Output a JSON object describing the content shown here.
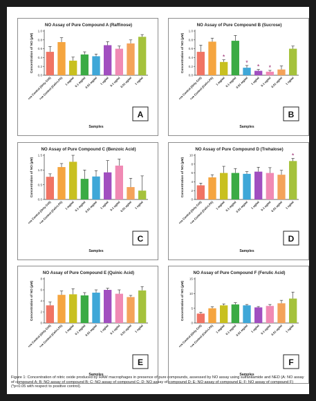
{
  "x_categories": [
    "+ve Control (Only Cell)",
    "+ve Control (Cell+LPS)",
    "1 mg/ml",
    "0.1 mg/ml",
    "0.01 mg/ml",
    "1 ug/ml",
    "0.1 ug/ml",
    "0.01 ug/ml",
    "1 ng/ml"
  ],
  "bar_colors": [
    "#f07464",
    "#f5a53f",
    "#c8c020",
    "#3bab44",
    "#3fa7d8",
    "#a14fc0",
    "#f08ab4",
    "#f4a35a",
    "#a5c23c"
  ],
  "chart_data": [
    {
      "type": "bar",
      "title": "NO Assay of Pure Compound A (Raffinose)",
      "xlabel": "Samples",
      "ylabel": "Concentration of NO (µM)",
      "ylim": [
        0,
        1.0
      ],
      "yticks": [
        "0.0",
        "0.2",
        "0.4",
        "0.6",
        "0.8",
        "1.0"
      ],
      "categories": [
        "+ve Control (Only Cell)",
        "+ve Control (Cell+LPS)",
        "1 mg/ml",
        "0.1 mg/ml",
        "0.01 mg/ml",
        "1 ug/ml",
        "0.1 ug/ml",
        "0.01 ug/ml",
        "1 ng/ml"
      ],
      "values": [
        0.53,
        0.75,
        0.33,
        0.47,
        0.43,
        0.68,
        0.6,
        0.72,
        0.87
      ],
      "errors": [
        0.12,
        0.1,
        0.08,
        0.06,
        0.05,
        0.08,
        0.06,
        0.08,
        0.05
      ],
      "stars": [
        false,
        false,
        false,
        false,
        false,
        false,
        false,
        false,
        false
      ],
      "label": "A"
    },
    {
      "type": "bar",
      "title": "NO Assay of Pure Compound B (Sucrose)",
      "xlabel": "Samples",
      "ylabel": "Concentration of NO (µM)",
      "ylim": [
        0,
        1.0
      ],
      "yticks": [
        "0.0",
        "0.2",
        "0.4",
        "0.6",
        "0.8",
        "1.0"
      ],
      "categories": [
        "+ve Control (Only Cell)",
        "+ve Control (Cell+LPS)",
        "1 mg/ml",
        "0.1 mg/ml",
        "0.01 mg/ml",
        "1 ug/ml",
        "0.1 ug/ml",
        "0.01 ug/ml",
        "1 ng/ml"
      ],
      "values": [
        0.53,
        0.76,
        0.3,
        0.78,
        0.17,
        0.1,
        0.08,
        0.13,
        0.6
      ],
      "errors": [
        0.15,
        0.08,
        0.05,
        0.12,
        0.05,
        0.03,
        0.03,
        0.08,
        0.06
      ],
      "stars": [
        false,
        false,
        true,
        false,
        true,
        true,
        true,
        false,
        false
      ],
      "label": "B"
    },
    {
      "type": "bar",
      "title": "NO Assay of Pure Compound C (Benzoic Acid)",
      "xlabel": "Samples",
      "ylabel": "Concentration of NO (µM)",
      "ylim": [
        0,
        1.5
      ],
      "yticks": [
        "0.0",
        "0.5",
        "1.0",
        "1.5"
      ],
      "categories": [
        "+ve Control (Only Cell)",
        "+ve Control (Cell+LPS)",
        "1 mg/ml",
        "0.1 mg/ml",
        "0.01 mg/ml",
        "1 ug/ml",
        "0.1 ug/ml",
        "0.01 ug/ml",
        "1 ng/ml"
      ],
      "values": [
        0.77,
        1.1,
        1.28,
        0.7,
        0.78,
        0.92,
        1.15,
        0.42,
        0.3
      ],
      "errors": [
        0.1,
        0.12,
        0.45,
        0.3,
        0.2,
        0.4,
        0.22,
        0.3,
        0.5
      ],
      "stars": [
        false,
        false,
        false,
        false,
        false,
        false,
        false,
        false,
        false
      ],
      "label": "C"
    },
    {
      "type": "bar",
      "title": "NO Assay of Pure Compound D (Trehalose)",
      "xlabel": "Samples",
      "ylabel": "Concentration of NO (µM)",
      "ylim": [
        0,
        10
      ],
      "yticks": [
        "0",
        "2",
        "4",
        "6",
        "8",
        "10"
      ],
      "categories": [
        "+ve Control (Only Cell)",
        "+ve Control (Cell+LPS)",
        "1 mg/ml",
        "0.1 mg/ml",
        "0.01 mg/ml",
        "1 ug/ml",
        "0.1 ug/ml",
        "0.01 ug/ml",
        "1 ng/ml"
      ],
      "values": [
        3.2,
        5.0,
        6.0,
        6.0,
        5.8,
        6.3,
        6.0,
        5.6,
        8.7
      ],
      "errors": [
        0.5,
        0.6,
        1.5,
        1.0,
        0.5,
        1.0,
        1.2,
        1.0,
        0.6
      ],
      "stars": [
        false,
        false,
        false,
        false,
        false,
        false,
        false,
        false,
        true
      ],
      "label": "D"
    },
    {
      "type": "bar",
      "title": "NO Assay of Pure Compound E (Quinic Acid)",
      "xlabel": "Samples",
      "ylabel": "Concentration of NO (µM)",
      "ylim": [
        0,
        8
      ],
      "yticks": [
        "0",
        "2",
        "4",
        "6",
        "8"
      ],
      "categories": [
        "+ve Control (Only Cell)",
        "+ve Control (Cell+LPS)",
        "1 mg/ml",
        "0.1 mg/ml",
        "0.01 mg/ml",
        "1 ug/ml",
        "0.1 ug/ml",
        "0.01 ug/ml",
        "1 ng/ml"
      ],
      "values": [
        3.2,
        5.1,
        5.2,
        5.0,
        5.5,
        6.0,
        5.3,
        4.7,
        5.9
      ],
      "errors": [
        0.6,
        0.7,
        1.0,
        0.5,
        0.5,
        0.3,
        0.7,
        0.3,
        0.7
      ],
      "stars": [
        false,
        false,
        false,
        false,
        false,
        false,
        false,
        false,
        false
      ],
      "label": "E"
    },
    {
      "type": "bar",
      "title": "NO Assay of Pure Compound F (Ferulic Acid)",
      "xlabel": "Samples",
      "ylabel": "Concentration of NO (µM)",
      "ylim": [
        0,
        15
      ],
      "yticks": [
        "0",
        "5",
        "10",
        "15"
      ],
      "categories": [
        "+ve Control (Only Cell)",
        "+ve Control (Cell+LPS)",
        "1 mg/ml",
        "0.1 mg/ml",
        "0.01 mg/ml",
        "1 ug/ml",
        "0.1 ug/ml",
        "0.01 ug/ml",
        "1 ng/ml"
      ],
      "values": [
        3.2,
        5.0,
        6.0,
        6.3,
        6.0,
        5.3,
        5.8,
        6.7,
        8.3
      ],
      "errors": [
        0.4,
        0.5,
        0.5,
        0.6,
        0.3,
        0.3,
        0.5,
        1.0,
        2.2
      ],
      "stars": [
        false,
        false,
        false,
        false,
        false,
        false,
        false,
        false,
        false
      ],
      "label": "F"
    }
  ],
  "caption": "Figure 1: Concentration of nitric oxide produced by RAW macrophages in presence of pure compounds, assessed by NO assay using sulfanilamide and NED (A: NO assay of compound A; B: NO assay of compound B; C: NO assay of compound C; D: NO assay of compound D; E: NO assay of compound E; F: NO assay of compound F) (*p<0.05 with respect to positive control)."
}
